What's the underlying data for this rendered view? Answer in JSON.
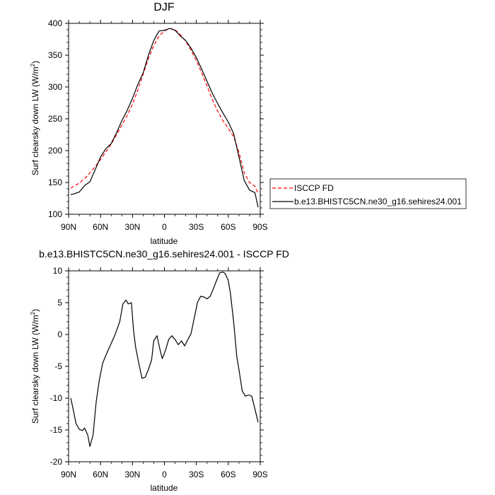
{
  "chart_data": [
    {
      "type": "line",
      "title": "DJF",
      "xlabel": "latitude",
      "ylabel": "Surf clearsky down LW (W/m",
      "ylabel_sup": "2",
      "ylabel_close": ")",
      "xlim": [
        90,
        -90
      ],
      "ylim": [
        100,
        400
      ],
      "x_ticks": [
        90,
        60,
        30,
        0,
        -30,
        -60,
        -90
      ],
      "x_tick_labels": [
        "90N",
        "60N",
        "30N",
        "0",
        "30S",
        "60S",
        "90S"
      ],
      "y_ticks": [
        100,
        150,
        200,
        250,
        300,
        350,
        400
      ],
      "y_tick_labels": [
        "100",
        "150",
        "200",
        "250",
        "300",
        "350",
        "400"
      ],
      "grid": false,
      "legend": "right",
      "series": [
        {
          "name": "ISCCP FD",
          "color": "#ff0000",
          "dash": "dashed",
          "x": [
            88,
            85,
            80,
            75,
            70,
            65,
            60,
            55,
            50,
            45,
            40,
            35,
            30,
            25,
            20,
            15,
            10,
            5,
            0,
            -5,
            -10,
            -15,
            -20,
            -25,
            -30,
            -35,
            -40,
            -45,
            -50,
            -55,
            -60,
            -65,
            -70,
            -75,
            -80,
            -85,
            -88
          ],
          "values": [
            141,
            144,
            149,
            156,
            165,
            175,
            186,
            198,
            210,
            225,
            240,
            255,
            273,
            295,
            320,
            345,
            365,
            380,
            388,
            392,
            390,
            382,
            372,
            358,
            341,
            322,
            302,
            280,
            262,
            247,
            235,
            222,
            197,
            165,
            150,
            144,
            133
          ]
        },
        {
          "name": "b.e13.BHISTC5CN.ne30_g16.sehires24.001",
          "color": "#000000",
          "dash": "solid",
          "x": [
            88,
            85,
            80,
            75,
            70,
            65,
            60,
            55,
            50,
            45,
            40,
            35,
            30,
            25,
            20,
            15,
            10,
            5,
            0,
            -5,
            -10,
            -15,
            -20,
            -25,
            -30,
            -35,
            -40,
            -45,
            -50,
            -55,
            -60,
            -65,
            -70,
            -75,
            -80,
            -85,
            -88
          ],
          "values": [
            131,
            132,
            135,
            145,
            151,
            170,
            190,
            203,
            211,
            228,
            247,
            263,
            282,
            304,
            322,
            350,
            373,
            388,
            389,
            392,
            389,
            380,
            373,
            361,
            346,
            328,
            309,
            290,
            274,
            259,
            245,
            227,
            190,
            153,
            138,
            134,
            111
          ]
        }
      ]
    },
    {
      "type": "line",
      "title": "b.e13.BHISTC5CN.ne30_g16.sehires24.001 - ISCCP FD",
      "xlabel": "latitude",
      "ylabel": "Surf clearsky down LW (W/m",
      "ylabel_sup": "2",
      "ylabel_close": ")",
      "xlim": [
        90,
        -90
      ],
      "ylim": [
        -20,
        10
      ],
      "x_ticks": [
        90,
        60,
        30,
        0,
        -30,
        -60,
        -90
      ],
      "x_tick_labels": [
        "90N",
        "60N",
        "30N",
        "0",
        "30S",
        "60S",
        "90S"
      ],
      "y_ticks": [
        -20,
        -15,
        -10,
        -5,
        0,
        5,
        10
      ],
      "y_tick_labels": [
        "-20",
        "-15",
        "-10",
        "-5",
        "0",
        "5",
        "10"
      ],
      "grid": false,
      "series": [
        {
          "color": "#000000",
          "dash": "solid",
          "x": [
            88,
            86,
            83,
            80,
            77,
            75,
            72,
            70,
            67,
            64,
            61,
            58,
            54,
            50,
            46,
            42,
            39,
            36,
            34,
            31,
            29,
            27,
            24,
            21,
            18,
            15,
            12,
            10,
            7,
            4,
            2,
            -1,
            -4,
            -7,
            -10,
            -13,
            -16,
            -19,
            -22,
            -25,
            -28,
            -31,
            -34,
            -37,
            -40,
            -43,
            -46,
            -49,
            -52,
            -55,
            -57,
            -60,
            -62,
            -65,
            -68,
            -70,
            -73,
            -76,
            -79,
            -82,
            -85,
            -88
          ],
          "values": [
            -10,
            -11.5,
            -14,
            -14.9,
            -15.1,
            -14.7,
            -15.8,
            -17.6,
            -15.8,
            -10.5,
            -7,
            -4.5,
            -2.9,
            -1.4,
            0.1,
            2,
            4.8,
            5.4,
            4.8,
            5,
            0.7,
            -2,
            -4.6,
            -6.9,
            -6.7,
            -5.5,
            -4,
            -1,
            -0.2,
            -2.5,
            -3.8,
            -2.5,
            -0.8,
            -0.2,
            -0.8,
            -1.6,
            -1,
            -1.8,
            -0.8,
            0.1,
            2.6,
            5,
            6,
            5.9,
            5.6,
            6,
            7.2,
            8.5,
            9.7,
            9.8,
            9.6,
            8.5,
            6.5,
            2,
            -3.5,
            -5.5,
            -8.8,
            -9.7,
            -9.5,
            -9.7,
            -11.7,
            -13.8
          ]
        }
      ]
    }
  ]
}
